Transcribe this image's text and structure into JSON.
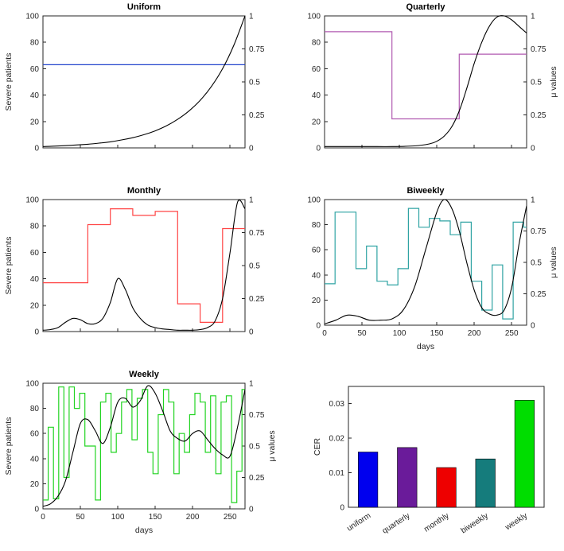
{
  "figure": {
    "background": "#ffffff",
    "axis_color": "#262626",
    "curve_color": "#000000"
  },
  "chart_data": [
    {
      "id": "uniform",
      "type": "line",
      "title": "Uniform",
      "mu_color": "#2244cc",
      "left_axis": {
        "label": "Severe patients",
        "ticks": [
          0,
          20,
          40,
          60,
          80,
          100
        ],
        "lim": [
          0,
          100
        ]
      },
      "right_axis": {
        "label": "",
        "ticks": [
          0,
          0.25,
          0.5,
          0.75,
          1
        ],
        "tick_labels": [
          "0",
          "0.25",
          "0.5",
          "0.75",
          "1"
        ],
        "lim": [
          0,
          1
        ]
      },
      "x_axis": {
        "label": "",
        "ticks": [
          0,
          50,
          100,
          150,
          200,
          250
        ],
        "lim": [
          0,
          270
        ],
        "show_tick_labels": false
      },
      "mu": {
        "interval": 270,
        "values": [
          0.63
        ]
      },
      "severe": {
        "x": [
          0,
          15,
          30,
          45,
          60,
          75,
          90,
          105,
          120,
          135,
          150,
          165,
          180,
          195,
          210,
          225,
          240,
          255,
          270
        ],
        "y": [
          1,
          1.3,
          1.7,
          2.2,
          2.8,
          3.6,
          4.6,
          6,
          7.7,
          10,
          12.9,
          16.7,
          21.6,
          27.9,
          36,
          46.5,
          60,
          77.7,
          100
        ]
      }
    },
    {
      "id": "quarterly",
      "type": "line",
      "title": "Quarterly",
      "mu_color": "#b05ab0",
      "left_axis": {
        "label": "",
        "ticks": [
          0,
          20,
          40,
          60,
          80,
          100
        ],
        "lim": [
          0,
          100
        ]
      },
      "right_axis": {
        "label": "μ values",
        "ticks": [
          0,
          0.25,
          0.5,
          0.75,
          1
        ],
        "tick_labels": [
          "0",
          "0.25",
          "0.5",
          "0.75",
          "1"
        ],
        "lim": [
          0,
          1
        ]
      },
      "x_axis": {
        "label": "",
        "ticks": [
          0,
          50,
          100,
          150,
          200,
          250
        ],
        "lim": [
          0,
          270
        ],
        "show_tick_labels": false
      },
      "mu": {
        "interval": 90,
        "values": [
          0.88,
          0.22,
          0.71
        ]
      },
      "severe": {
        "x": [
          0,
          30,
          60,
          90,
          120,
          140,
          150,
          160,
          170,
          180,
          190,
          200,
          210,
          220,
          230,
          240,
          250,
          260,
          270
        ],
        "y": [
          1,
          1,
          1,
          1,
          1.5,
          3,
          5,
          9,
          16,
          28,
          45,
          64,
          80,
          92,
          99,
          100,
          97,
          92,
          87
        ]
      }
    },
    {
      "id": "monthly",
      "type": "line",
      "title": "Monthly",
      "mu_color": "#ff4444",
      "left_axis": {
        "label": "Severe patients",
        "ticks": [
          0,
          20,
          40,
          60,
          80,
          100
        ],
        "lim": [
          0,
          100
        ]
      },
      "right_axis": {
        "label": "",
        "ticks": [
          0,
          0.25,
          0.5,
          0.75,
          1
        ],
        "tick_labels": [
          "0",
          "0.25",
          "0.5",
          "0.75",
          "1"
        ],
        "lim": [
          0,
          1
        ]
      },
      "x_axis": {
        "label": "",
        "ticks": [
          0,
          50,
          100,
          150,
          200,
          250
        ],
        "lim": [
          0,
          270
        ],
        "show_tick_labels": false
      },
      "mu": {
        "interval": 30,
        "values": [
          0.37,
          0.37,
          0.81,
          0.93,
          0.88,
          0.91,
          0.21,
          0.07,
          0.78
        ]
      },
      "severe": {
        "x": [
          0,
          10,
          20,
          30,
          40,
          50,
          60,
          70,
          80,
          90,
          100,
          110,
          120,
          130,
          140,
          150,
          160,
          170,
          180,
          190,
          200,
          210,
          220,
          230,
          240,
          250,
          260,
          270
        ],
        "y": [
          1,
          1.5,
          3,
          7,
          10,
          9,
          6,
          6,
          10,
          22,
          40,
          32,
          18,
          10,
          5,
          3,
          2,
          1.5,
          1,
          1,
          1,
          1.5,
          3,
          8,
          25,
          60,
          98,
          93
        ]
      }
    },
    {
      "id": "biweekly",
      "type": "line",
      "title": "Biweekly",
      "mu_color": "#2fa3a3",
      "left_axis": {
        "label": "",
        "ticks": [
          0,
          20,
          40,
          60,
          80,
          100
        ],
        "lim": [
          0,
          100
        ]
      },
      "right_axis": {
        "label": "μ values",
        "ticks": [
          0,
          0.25,
          0.5,
          0.75,
          1
        ],
        "tick_labels": [
          "0",
          "0.25",
          "0.5",
          "0.75",
          "1"
        ],
        "lim": [
          0,
          1
        ]
      },
      "x_axis": {
        "label": "days",
        "ticks": [
          0,
          50,
          100,
          150,
          200,
          250
        ],
        "lim": [
          0,
          270
        ],
        "show_tick_labels": true
      },
      "mu": {
        "interval": 14,
        "values": [
          0.33,
          0.9,
          0.9,
          0.45,
          0.63,
          0.35,
          0.32,
          0.45,
          0.93,
          0.78,
          0.85,
          0.83,
          0.72,
          0.82,
          0.35,
          0.12,
          0.48,
          0.05,
          0.82,
          0.78
        ]
      },
      "severe": {
        "x": [
          0,
          15,
          30,
          45,
          60,
          75,
          90,
          105,
          120,
          135,
          150,
          160,
          170,
          180,
          190,
          200,
          210,
          220,
          230,
          240,
          250,
          260,
          270
        ],
        "y": [
          1,
          4,
          8,
          7,
          4,
          4,
          5,
          12,
          30,
          60,
          90,
          100,
          93,
          75,
          50,
          28,
          14,
          9,
          8,
          12,
          30,
          65,
          95
        ]
      }
    },
    {
      "id": "weekly",
      "type": "line",
      "title": "Weekly",
      "mu_color": "#22d422",
      "left_axis": {
        "label": "Severe patients",
        "ticks": [
          0,
          20,
          40,
          60,
          80,
          100
        ],
        "lim": [
          0,
          100
        ]
      },
      "right_axis": {
        "label": "μ values",
        "ticks": [
          0,
          0.25,
          0.5,
          0.75,
          1
        ],
        "tick_labels": [
          "0",
          "0.25",
          "0.5",
          "0.75",
          "1"
        ],
        "lim": [
          0,
          1
        ]
      },
      "x_axis": {
        "label": "days",
        "ticks": [
          0,
          50,
          100,
          150,
          200,
          250
        ],
        "lim": [
          0,
          270
        ],
        "show_tick_labels": true
      },
      "mu": {
        "interval": 7,
        "values": [
          0.07,
          0.65,
          0.08,
          0.97,
          0.25,
          0.97,
          0.8,
          0.92,
          0.5,
          0.5,
          0.07,
          0.85,
          0.92,
          0.45,
          0.6,
          0.85,
          0.95,
          0.55,
          0.88,
          0.95,
          0.45,
          0.28,
          0.75,
          0.95,
          0.85,
          0.28,
          0.6,
          0.45,
          0.75,
          0.92,
          0.85,
          0.45,
          0.9,
          0.28,
          0.85,
          0.9,
          0.05,
          0.3,
          0.95
        ]
      },
      "severe": {
        "x": [
          0,
          10,
          20,
          30,
          40,
          50,
          60,
          70,
          80,
          90,
          100,
          110,
          120,
          130,
          140,
          150,
          160,
          170,
          180,
          190,
          200,
          210,
          220,
          230,
          240,
          250,
          260,
          270
        ],
        "y": [
          2,
          4,
          10,
          22,
          45,
          68,
          71,
          62,
          52,
          65,
          85,
          88,
          81,
          86,
          98,
          92,
          78,
          62,
          56,
          54,
          60,
          62,
          55,
          48,
          43,
          42,
          65,
          95
        ]
      }
    },
    {
      "id": "cer",
      "type": "bar",
      "title": "",
      "y_axis": {
        "label": "CER",
        "ticks": [
          0,
          0.01,
          0.02,
          0.03
        ],
        "tick_labels": [
          "0",
          "0.01",
          "0.02",
          "0.03"
        ],
        "lim": [
          0,
          0.035
        ]
      },
      "categories": [
        "uniform",
        "quarterly",
        "monthly",
        "biweekly",
        "weekly"
      ],
      "values": [
        0.016,
        0.0173,
        0.0115,
        0.014,
        0.031
      ],
      "colors": [
        "#0000ee",
        "#6a1b9a",
        "#ee0000",
        "#157c7c",
        "#00dd00"
      ]
    }
  ]
}
